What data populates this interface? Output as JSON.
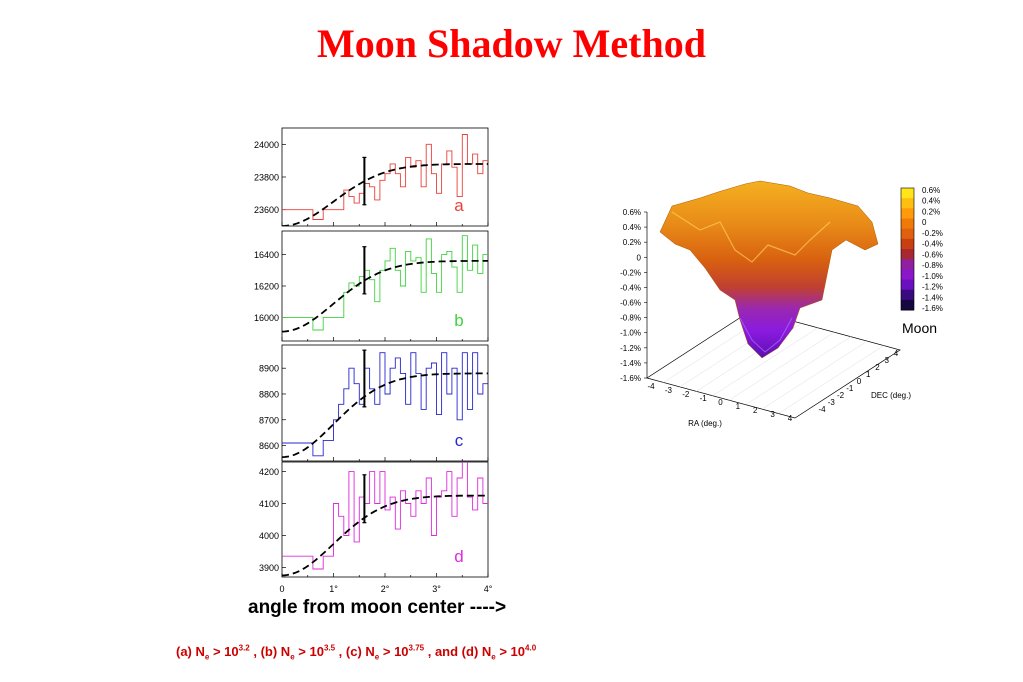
{
  "title": "Moon Shadow Method",
  "x_caption": "angle from moon center ---->",
  "caption_parts": [
    {
      "label": "(a)",
      "N": "N",
      "sub": "e",
      "gt": " > 10",
      "exp": "3.2",
      "sep": " ,"
    },
    {
      "label": "(b)",
      "N": "N",
      "sub": "e",
      "gt": " > 10",
      "exp": "3.5",
      "sep": " ,"
    },
    {
      "label": "(c)",
      "N": "N",
      "sub": "e",
      "gt": " > 10",
      "exp": "3.75",
      "sep": " , and"
    },
    {
      "label": "(d)",
      "N": "N",
      "sub": "e",
      "gt": " > 10",
      "exp": "4.0",
      "sep": ""
    }
  ],
  "chart_data": [
    {
      "type": "line",
      "panel_label": "a",
      "color": "#e8413a",
      "xlim": [
        0,
        4
      ],
      "ylim": [
        23500,
        24100
      ],
      "yticks": [
        23600,
        23800,
        24000
      ],
      "histogram_x": [
        0,
        0.6,
        0.8,
        1.0,
        1.1,
        1.2,
        1.3,
        1.4,
        1.5,
        1.6,
        1.7,
        1.8,
        1.9,
        2.0,
        2.1,
        2.2,
        2.3,
        2.4,
        2.5,
        2.6,
        2.7,
        2.8,
        2.9,
        3.0,
        3.1,
        3.2,
        3.3,
        3.4,
        3.5,
        3.6,
        3.7,
        3.8,
        3.9,
        4.0
      ],
      "histogram_y": [
        23600,
        23540,
        23600,
        23600,
        23600,
        23720,
        23680,
        23640,
        23700,
        23760,
        23740,
        23660,
        23780,
        23820,
        23880,
        23820,
        23740,
        23920,
        23860,
        23900,
        23740,
        24000,
        23820,
        23700,
        23880,
        23960,
        23860,
        23680,
        24060,
        23880,
        23940,
        23820,
        23900,
        23900
      ],
      "fit_y_start": 23500,
      "fit_y_end": 23880,
      "error_bar": {
        "x": 1.6,
        "y": 23780,
        "low": 23630,
        "high": 23920
      }
    },
    {
      "type": "line",
      "panel_label": "b",
      "color": "#3fd33f",
      "xlim": [
        0,
        4
      ],
      "ylim": [
        15850,
        16550
      ],
      "yticks": [
        16000,
        16200,
        16400
      ],
      "histogram_x": [
        0,
        0.6,
        0.8,
        1.0,
        1.1,
        1.2,
        1.3,
        1.4,
        1.5,
        1.6,
        1.7,
        1.8,
        1.9,
        2.0,
        2.1,
        2.2,
        2.3,
        2.4,
        2.5,
        2.6,
        2.7,
        2.8,
        2.9,
        3.0,
        3.1,
        3.2,
        3.3,
        3.4,
        3.5,
        3.6,
        3.7,
        3.8,
        3.9,
        4.0
      ],
      "histogram_y": [
        16000,
        15920,
        16000,
        16000,
        16000,
        16160,
        16220,
        16200,
        16260,
        16300,
        16240,
        16100,
        16300,
        16360,
        16440,
        16300,
        16200,
        16420,
        16360,
        16380,
        16160,
        16500,
        16280,
        16160,
        16400,
        16420,
        16320,
        16160,
        16520,
        16300,
        16460,
        16280,
        16400,
        16400
      ],
      "fit_y_start": 15910,
      "fit_y_end": 16360,
      "error_bar": {
        "x": 1.6,
        "y": 16300,
        "low": 16150,
        "high": 16450
      }
    },
    {
      "type": "line",
      "panel_label": "c",
      "color": "#2727cf",
      "xlim": [
        0,
        4
      ],
      "ylim": [
        8540,
        8990
      ],
      "yticks": [
        8600,
        8700,
        8800,
        8900
      ],
      "histogram_x": [
        0,
        0.6,
        0.8,
        1.0,
        1.1,
        1.2,
        1.3,
        1.4,
        1.5,
        1.6,
        1.7,
        1.8,
        1.9,
        2.0,
        2.1,
        2.2,
        2.3,
        2.4,
        2.5,
        2.6,
        2.7,
        2.8,
        2.9,
        3.0,
        3.1,
        3.2,
        3.3,
        3.4,
        3.5,
        3.6,
        3.7,
        3.8,
        3.9,
        4.0
      ],
      "histogram_y": [
        8610,
        8560,
        8620,
        8700,
        8760,
        8820,
        8900,
        8840,
        8760,
        8900,
        8820,
        8760,
        8960,
        8800,
        8900,
        8940,
        8880,
        8760,
        8960,
        8880,
        8740,
        8900,
        8920,
        8720,
        8960,
        8800,
        8900,
        8700,
        8960,
        8740,
        8960,
        8800,
        8840,
        8920
      ],
      "fit_y_start": 8555,
      "fit_y_end": 8880,
      "error_bar": {
        "x": 1.6,
        "y": 8840,
        "low": 8750,
        "high": 8970
      }
    },
    {
      "type": "line",
      "panel_label": "d",
      "color": "#de2ade",
      "xlim": [
        0,
        4
      ],
      "ylim": [
        3870,
        4230
      ],
      "yticks": [
        3900,
        4000,
        4100,
        4200
      ],
      "histogram_x": [
        0,
        0.6,
        0.8,
        1.0,
        1.1,
        1.2,
        1.3,
        1.4,
        1.5,
        1.6,
        1.7,
        1.8,
        1.9,
        2.0,
        2.1,
        2.2,
        2.3,
        2.4,
        2.5,
        2.6,
        2.7,
        2.8,
        2.9,
        3.0,
        3.1,
        3.2,
        3.3,
        3.4,
        3.5,
        3.6,
        3.7,
        3.8,
        3.9,
        4.0
      ],
      "histogram_y": [
        3935,
        3895,
        3935,
        4100,
        4060,
        4000,
        4200,
        3980,
        4120,
        4100,
        4200,
        4100,
        4200,
        4080,
        4120,
        4020,
        4140,
        4100,
        4060,
        4140,
        4100,
        4180,
        4000,
        4120,
        4140,
        4200,
        4060,
        4180,
        4240,
        4120,
        4080,
        4180,
        4100,
        4160
      ],
      "fit_y_start": 3875,
      "fit_y_end": 4125,
      "error_bar": {
        "x": 1.6,
        "y": 4110,
        "low": 4040,
        "high": 4190
      }
    }
  ],
  "x_ticks": [
    "0",
    "1°",
    "2°",
    "3°",
    "4°"
  ],
  "surface_plot": {
    "z_ticks": [
      "0.6%",
      "0.4%",
      "0.2%",
      "0",
      "-0.2%",
      "-0.4%",
      "-0.6%",
      "-0.8%",
      "-1.0%",
      "-1.2%",
      "-1.4%",
      "-1.6%"
    ],
    "ra_ticks": [
      "-4",
      "-3",
      "-2",
      "-1",
      "0",
      "1",
      "2",
      "3",
      "4"
    ],
    "dec_ticks": [
      "-4",
      "-3",
      "-2",
      "-1",
      "0",
      "1",
      "2",
      "3",
      "4"
    ],
    "ra_label": "RA (deg.)",
    "dec_label": "DEC (deg.)",
    "colorbar_ticks": [
      "0.6%",
      "0.4%",
      "0.2%",
      "0",
      "-0.2%",
      "-0.4%",
      "-0.6%",
      "-0.8%",
      "-1.0%",
      "-1.2%",
      "-1.4%",
      "-1.6%"
    ],
    "colorbar_colors": [
      "#ffe51a",
      "#ffbf10",
      "#ff9a0a",
      "#f07a08",
      "#e06010",
      "#c84010",
      "#a82830",
      "#9020a0",
      "#8a18c8",
      "#6a10c0",
      "#3a0a80",
      "#150840"
    ],
    "label": "Moon"
  }
}
